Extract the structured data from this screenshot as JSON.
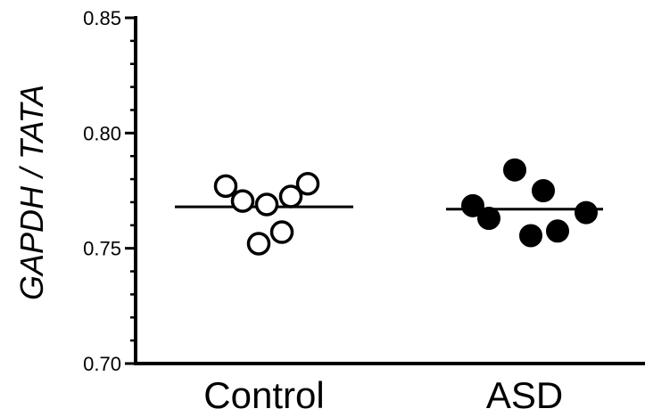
{
  "chart_data": {
    "type": "scatter",
    "ylabel": "GAPDH / TATA",
    "ylim": [
      0.7,
      0.85
    ],
    "y_ticks": [
      "0.70",
      "0.75",
      "0.80",
      "0.85"
    ],
    "y_tick_values": [
      0.7,
      0.75,
      0.8,
      0.85
    ],
    "y_minor_step": 0.01,
    "grid": false,
    "categories": [
      "Control",
      "ASD"
    ],
    "series": [
      {
        "category": "Control",
        "marker": "open-circle",
        "color": "#000000",
        "points": [
          {
            "offset": -0.4,
            "y": 0.777
          },
          {
            "offset": -0.21,
            "y": 0.7705
          },
          {
            "offset": -0.03,
            "y": 0.752
          },
          {
            "offset": 0.06,
            "y": 0.769
          },
          {
            "offset": 0.23,
            "y": 0.757
          },
          {
            "offset": 0.33,
            "y": 0.7725
          },
          {
            "offset": 0.52,
            "y": 0.778
          }
        ],
        "mean": 0.768
      },
      {
        "category": "ASD",
        "marker": "filled-circle",
        "color": "#000000",
        "points": [
          {
            "offset": -0.51,
            "y": 0.7685
          },
          {
            "offset": -0.33,
            "y": 0.763
          },
          {
            "offset": -0.04,
            "y": 0.784
          },
          {
            "offset": 0.14,
            "y": 0.7555
          },
          {
            "offset": 0.28,
            "y": 0.775
          },
          {
            "offset": 0.44,
            "y": 0.7575
          },
          {
            "offset": 0.76,
            "y": 0.7655
          }
        ],
        "mean": 0.767
      }
    ]
  }
}
